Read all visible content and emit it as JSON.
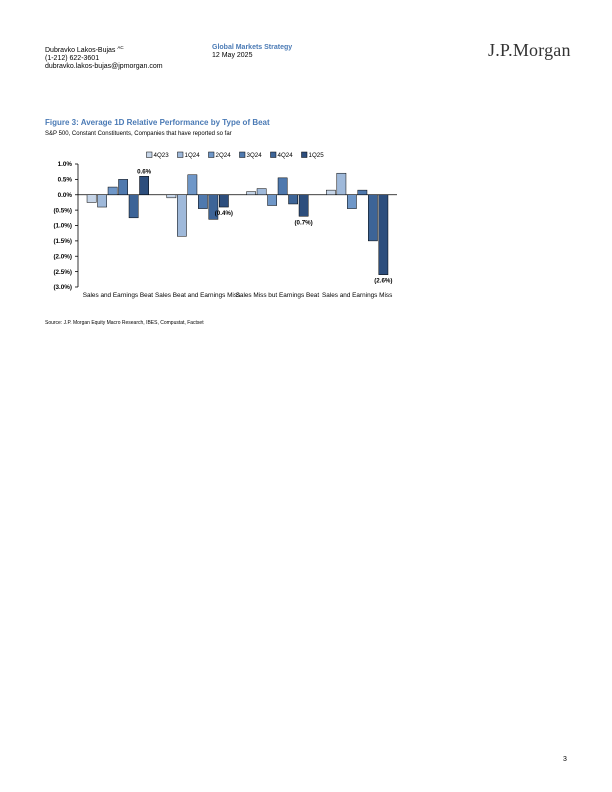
{
  "header": {
    "author": "Dubravko Lakos-Bujas",
    "author_sup": "AC",
    "phone": "(1-212) 622-3601",
    "email": "dubravko.lakos-bujas@jpmorgan.com",
    "group": "Global Markets Strategy",
    "date": "12 May 2025",
    "logo": "J.P.Morgan"
  },
  "figure": {
    "title": "Figure 3: Average 1D Relative Performance by Type of Beat",
    "subtitle": "S&P 500, Constant Constituents, Companies that have reported so far",
    "source": "Source: J.P. Morgan Equity Macro Research, IBES, Compustat, Factset"
  },
  "page_number": "3",
  "chart_data": {
    "type": "bar",
    "categories": [
      "Sales and Earnings Beat",
      "Sales Beat and Earnings Miss",
      "Sales Miss but Earnings Beat",
      "Sales and Earnings Miss"
    ],
    "series": [
      {
        "name": "4Q23",
        "color": "#c6d5e8",
        "values": [
          -0.25,
          -0.1,
          0.1,
          0.15
        ]
      },
      {
        "name": "1Q24",
        "color": "#9fb9da",
        "values": [
          -0.4,
          -1.35,
          0.2,
          0.7
        ]
      },
      {
        "name": "2Q24",
        "color": "#6f97c8",
        "values": [
          0.25,
          0.65,
          -0.35,
          -0.45
        ]
      },
      {
        "name": "3Q24",
        "color": "#4f79ae",
        "values": [
          0.5,
          -0.45,
          0.55,
          0.15
        ]
      },
      {
        "name": "4Q24",
        "color": "#3d6497",
        "values": [
          -0.75,
          -0.8,
          -0.3,
          -1.5
        ]
      },
      {
        "name": "1Q25",
        "color": "#2d4e7d",
        "values": [
          0.6,
          -0.4,
          -0.7,
          -2.6
        ]
      }
    ],
    "data_labels": [
      {
        "category": 0,
        "series": 5,
        "text": "0.6%"
      },
      {
        "category": 1,
        "series": 5,
        "text": "(0.4%)"
      },
      {
        "category": 2,
        "series": 5,
        "text": "(0.7%)"
      },
      {
        "category": 3,
        "series": 5,
        "text": "(2.6%)"
      }
    ],
    "yticks": [
      1.0,
      0.5,
      0.0,
      -0.5,
      -1.0,
      -1.5,
      -2.0,
      -2.5,
      -3.0
    ],
    "ytick_labels": [
      "1.0%",
      "0.5%",
      "0.0%",
      "(0.5%)",
      "(1.0%)",
      "(1.5%)",
      "(2.0%)",
      "(2.5%)",
      "(3.0%)"
    ],
    "ylim": [
      -3.0,
      1.0
    ],
    "legend_position": "top-center",
    "grid": false
  }
}
